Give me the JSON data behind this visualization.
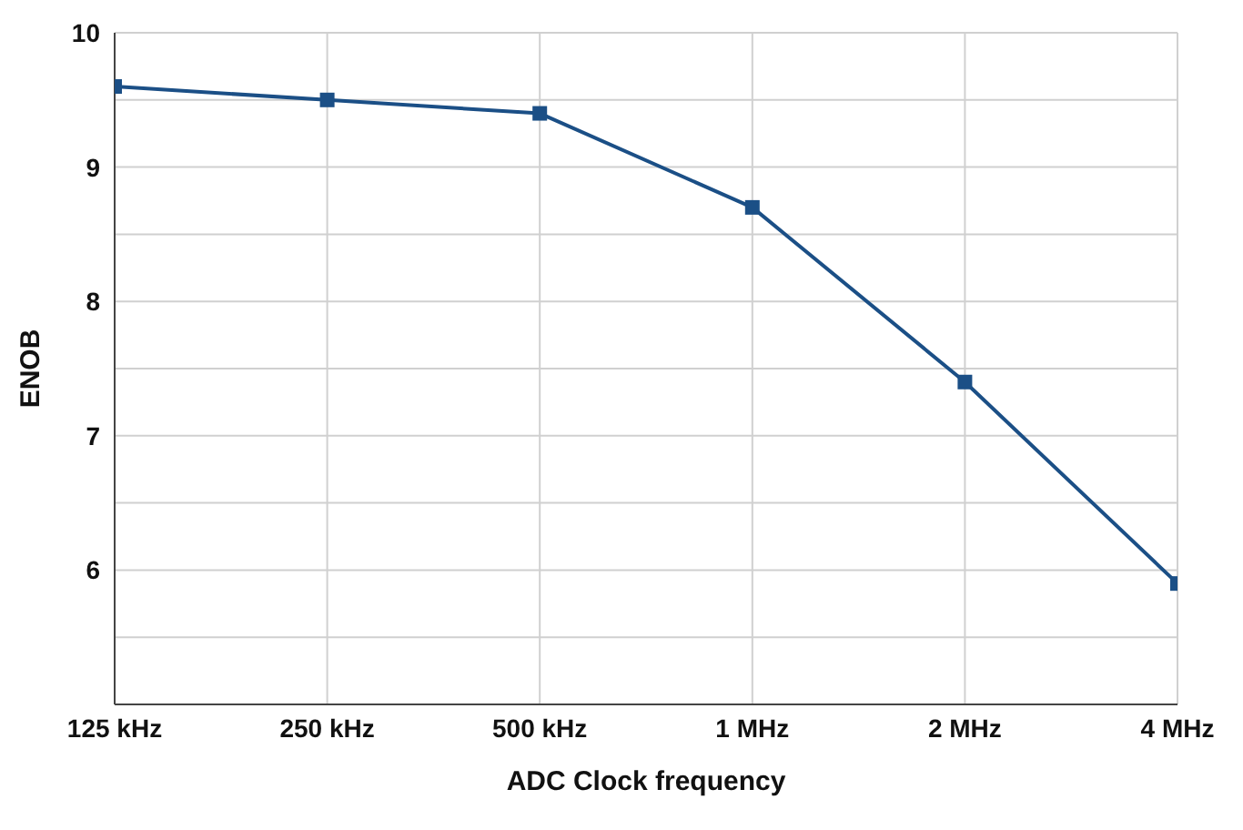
{
  "chart_data": {
    "type": "line",
    "xlabel": "ADC Clock frequency",
    "ylabel": "ENOB",
    "categories": [
      "125 kHz",
      "250 kHz",
      "500 kHz",
      "1 MHz",
      "2 MHz",
      "4 MHz"
    ],
    "series": [
      {
        "color": "#1b4f86",
        "values": [
          9.6,
          9.5,
          9.4,
          8.7,
          7.4,
          5.9
        ]
      }
    ],
    "ylim": [
      5,
      10
    ],
    "yticks": [
      {
        "value": 5,
        "label": null
      },
      {
        "value": 5.5,
        "label": null
      },
      6,
      {
        "value": 6.5,
        "label": null
      },
      7,
      {
        "value": 7.5,
        "label": null
      },
      8,
      {
        "value": 8.5,
        "label": null
      },
      9,
      {
        "value": 9.5,
        "label": null
      },
      10
    ],
    "grid": true,
    "marker": "square",
    "line_style": "solid",
    "legend": false
  }
}
